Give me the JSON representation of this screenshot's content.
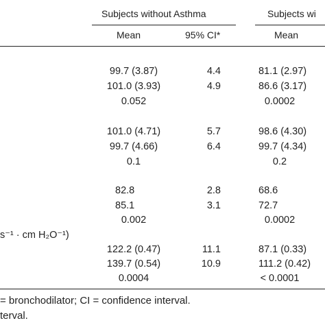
{
  "header": {
    "group1_title": "Subjects without Asthma",
    "group2_title": "Subjects wi",
    "group1_mean": "Mean",
    "group1_ci": "95% CI*",
    "group2_mean": "Mean"
  },
  "rows": [
    {
      "mean1": "99.7 (3.87)",
      "ci1": "4.4",
      "mean2": "81.1 (2.97)"
    },
    {
      "mean1": "101.0 (3.93)",
      "ci1": "4.9",
      "mean2": "86.6 (3.17)"
    },
    {
      "mean1": "0.052",
      "ci1": "",
      "mean2": "0.0002"
    },
    {
      "mean1": "101.0 (4.71)",
      "ci1": "5.7",
      "mean2": "98.6 (4.30)"
    },
    {
      "mean1": "99.7 (4.66)",
      "ci1": "6.4",
      "mean2": "99.7 (4.34)"
    },
    {
      "mean1": "0.1",
      "ci1": "",
      "mean2": "0.2"
    },
    {
      "mean1": "82.8",
      "ci1": "2.8",
      "mean2": "68.6"
    },
    {
      "mean1": "85.1",
      "ci1": "3.1",
      "mean2": "72.7"
    },
    {
      "mean1": "0.002",
      "ci1": "",
      "mean2": "0.0002"
    },
    {
      "mean1": "122.2 (0.47)",
      "ci1": "11.1",
      "mean2": "87.1 (0.33)"
    },
    {
      "mean1": "139.7 (0.54)",
      "ci1": "10.9",
      "mean2": "111.2 (0.42)"
    },
    {
      "mean1": "0.0004",
      "ci1": "",
      "mean2": "< 0.0001"
    }
  ],
  "row_label_fragment": "s⁻¹ · cm H₂O⁻¹)",
  "footnotes": {
    "line1": "= bronchodilator; CI = confidence interval.",
    "line2": "terval."
  }
}
